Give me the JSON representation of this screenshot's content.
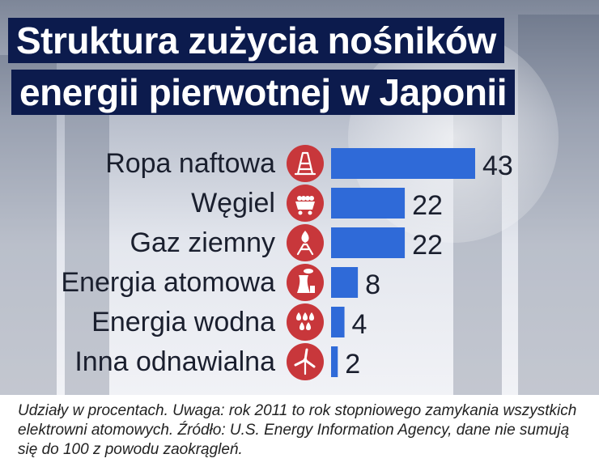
{
  "title_lines": [
    "Struktura zużycia nośników",
    "energii pierwotnej w Japonii"
  ],
  "footnote": "Udziały w procentach. Uwaga: rok 2011 to rok stopniowego zamykania wszystkich elektrowni atomowych. Źródło: U.S. Energy Information Agency, dane nie sumują się do 100 z powodu zaokrągleń.",
  "colors": {
    "bar": "#2f6ad8",
    "icon": "#c8373b",
    "title_bg": "#0c1b4d",
    "text": "#1a1f2e"
  },
  "chart_data": {
    "type": "bar",
    "orientation": "horizontal",
    "title": "Struktura zużycia nośników energii pierwotnej w Japonii",
    "categories": [
      "Ropa naftowa",
      "Węgiel",
      "Gaz ziemny",
      "Energia atomowa",
      "Energia wodna",
      "Inna odnawialna"
    ],
    "values": [
      43,
      22,
      22,
      8,
      4,
      2
    ],
    "icons": [
      "oil-derrick-icon",
      "coal-cart-icon",
      "gas-flame-icon",
      "nuclear-plant-icon",
      "water-drops-icon",
      "wind-turbine-icon"
    ],
    "grid": false,
    "legend": "none",
    "xlim": [
      0,
      43
    ]
  }
}
